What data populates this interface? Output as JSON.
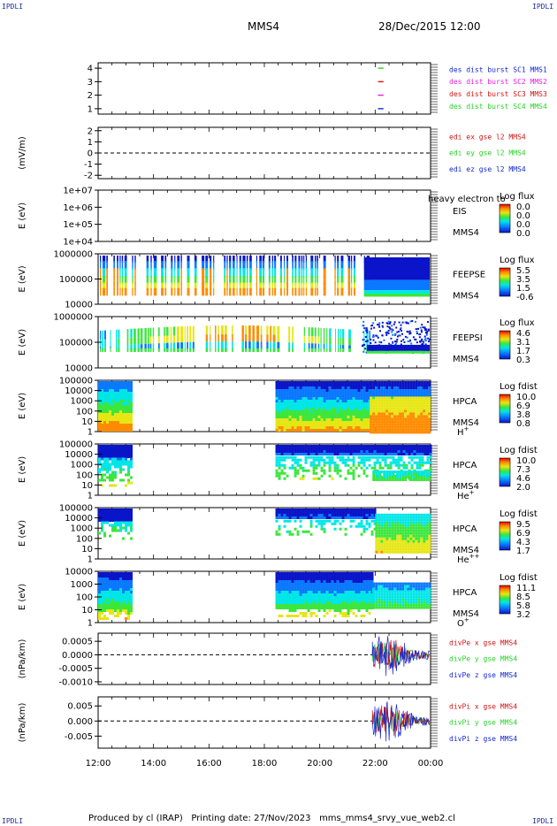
{
  "header": {
    "corner_mark": "IPDLI",
    "spacecraft": "MMS4",
    "datetime": "28/Dec/2015 12:00"
  },
  "footer": {
    "produced_by": "Produced by cl (IRAP)",
    "printing_date": "Printing date: 27/Nov/2023",
    "script_name": "mms_mms4_srvy_vue_web2.cl"
  },
  "colors": {
    "blue": "#1428d2",
    "magenta": "#e61ee6",
    "red": "#d21414",
    "green": "#28d228"
  },
  "chart_data": [
    {
      "type": "line",
      "id": "burst",
      "ylabel": "",
      "yticks": [
        "1",
        "2",
        "3",
        "4"
      ],
      "ylim": [
        0.6,
        4.4
      ],
      "legend": [
        {
          "text": "des dist burst SC1 MMS1",
          "color": "#1428d2"
        },
        {
          "text": "des dist burst SC2 MMS2",
          "color": "#e61ee6"
        },
        {
          "text": "des dist burst SC3 MMS3",
          "color": "#d21414"
        },
        {
          "text": "des dist burst SC4 MMS4",
          "color": "#28d228"
        }
      ],
      "series": [
        {
          "y": 4,
          "x": [
            22.1,
            22.3
          ],
          "color": "#28d228"
        },
        {
          "y": 3,
          "x": [
            22.1,
            22.3
          ],
          "color": "#d21414"
        },
        {
          "y": 2,
          "x": [
            22.1,
            22.3
          ],
          "color": "#e61ee6"
        },
        {
          "y": 1,
          "x": [
            22.1,
            22.3
          ],
          "color": "#1428d2"
        }
      ]
    },
    {
      "type": "line",
      "id": "edi",
      "ylabel": "(mV/m)",
      "yticks": [
        "-2",
        "-1",
        "0",
        "1",
        "2"
      ],
      "ylim": [
        -2.3,
        2.3
      ],
      "zero_line": true,
      "legend": [
        {
          "text": "edi ex gse l2 MMS4",
          "color": "#d21414"
        },
        {
          "text": "edi ey gse l2 MMS4",
          "color": "#28d228"
        },
        {
          "text": "edi ez gse l2 MMS4",
          "color": "#1428d2"
        }
      ]
    },
    {
      "type": "heatmap",
      "id": "eis",
      "ylabel": "E (eV)",
      "yticks": [
        "1e+04",
        "1e+05",
        "1e+06",
        "1e+07"
      ],
      "instrument": "EIS",
      "overlap_text": "heavy electron to",
      "sc": "MMS4",
      "colorbar_title": "Log flux",
      "colorbar_ticks": [
        "0.0",
        "0.0",
        "0.0",
        "0.0"
      ]
    },
    {
      "type": "heatmap",
      "id": "feepse",
      "ylabel": "E (eV)",
      "yticks": [
        "10000",
        "100000",
        "1000000"
      ],
      "instrument": "FEEPSE",
      "sc": "MMS4",
      "colorbar_title": "Log flux",
      "colorbar_ticks": [
        "5.5",
        "3.5",
        "1.5",
        "-0.6"
      ]
    },
    {
      "type": "heatmap",
      "id": "feepsi",
      "ylabel": "E (eV)",
      "yticks": [
        "10000",
        "100000",
        "1000000"
      ],
      "instrument": "FEEPSI",
      "sc": "MMS4",
      "colorbar_title": "Log flux",
      "colorbar_ticks": [
        "4.6",
        "3.1",
        "1.7",
        "0.3"
      ]
    },
    {
      "type": "heatmap",
      "id": "hpca_h",
      "ylabel": "E (eV)",
      "yticks": [
        "1",
        "10",
        "100",
        "1000",
        "10000",
        "100000"
      ],
      "instrument": "HPCA",
      "sc": "MMS4",
      "species": "H",
      "species_sup": "+",
      "colorbar_title": "Log fdist",
      "colorbar_ticks": [
        "10.0",
        "6.9",
        "3.8",
        "0.8"
      ]
    },
    {
      "type": "heatmap",
      "id": "hpca_he",
      "ylabel": "E (eV)",
      "yticks": [
        "1",
        "10",
        "100",
        "1000",
        "10000",
        "100000"
      ],
      "instrument": "HPCA",
      "sc": "MMS4",
      "species": "He",
      "species_sup": "+",
      "colorbar_title": "Log fdist",
      "colorbar_ticks": [
        "10.0",
        "7.3",
        "4.6",
        "2.0"
      ]
    },
    {
      "type": "heatmap",
      "id": "hpca_he2",
      "ylabel": "E (eV)",
      "yticks": [
        "1",
        "10",
        "100",
        "1000",
        "10000",
        "100000"
      ],
      "instrument": "HPCA",
      "sc": "MMS4",
      "species": "He",
      "species_sup": "++",
      "colorbar_title": "Log fdist",
      "colorbar_ticks": [
        "9.5",
        "6.9",
        "4.3",
        "1.7"
      ]
    },
    {
      "type": "heatmap",
      "id": "hpca_o",
      "ylabel": "E (eV)",
      "yticks": [
        "1",
        "10",
        "100",
        "1000",
        "10000"
      ],
      "instrument": "HPCA",
      "sc": "MMS4",
      "species": "O",
      "species_sup": "+",
      "colorbar_title": "Log fdist",
      "colorbar_ticks": [
        "11.1",
        "8.5",
        "5.8",
        "3.2"
      ]
    },
    {
      "type": "line",
      "id": "divpe",
      "ylabel": "(nPa/km)",
      "yticks": [
        "-0.0010",
        "-0.0005",
        "0.0000",
        "0.0005"
      ],
      "ylim": [
        -0.0011,
        0.0008
      ],
      "zero_line": true,
      "legend": [
        {
          "text": "divPe x gse MMS4",
          "color": "#d21414"
        },
        {
          "text": "divPe y gse MMS4",
          "color": "#28d228"
        },
        {
          "text": "divPe z gse MMS4",
          "color": "#1428d2"
        }
      ]
    },
    {
      "type": "line",
      "id": "divpi",
      "ylabel": "(nPa/km)",
      "yticks": [
        "-0.005",
        "0.000",
        "0.005"
      ],
      "ylim": [
        -0.009,
        0.008
      ],
      "zero_line": true,
      "legend": [
        {
          "text": "divPi x gse MMS4",
          "color": "#d21414"
        },
        {
          "text": "divPi y gse MMS4",
          "color": "#28d228"
        },
        {
          "text": "divPi z gse MMS4",
          "color": "#1428d2"
        }
      ]
    }
  ],
  "time_axis": {
    "start_hour": 12,
    "end_hour": 24,
    "labels": [
      "12:00",
      "14:00",
      "16:00",
      "18:00",
      "20:00",
      "22:00",
      "00:00"
    ]
  }
}
